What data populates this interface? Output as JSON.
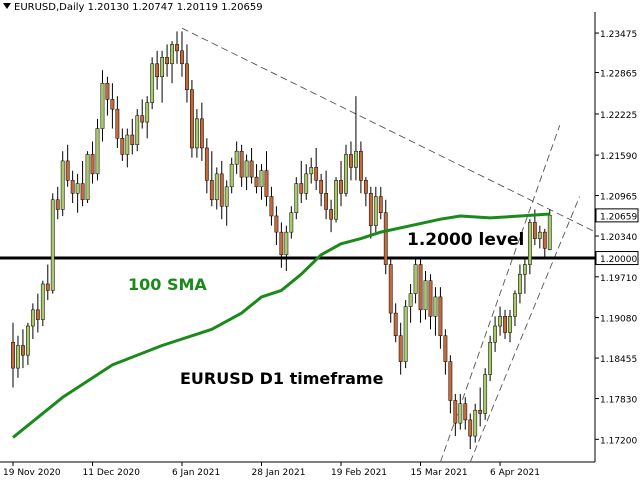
{
  "header": {
    "symbol": "EURUSD,Daily",
    "ohlc": "1.20130 1.20747 1.20119 1.20659"
  },
  "annotations": {
    "level_label": "1.2000 level",
    "sma_label": "100 SMA",
    "timeframe_label": "EURUSD D1 timeframe"
  },
  "colors": {
    "bull": "#a9c96a",
    "bear": "#c46a3a",
    "wick": "#000000",
    "sma": "#1a8a1a",
    "level": "#000000",
    "trend": "#555555",
    "axis_text": "#000000"
  },
  "chart_data": {
    "type": "candlestick",
    "title": "EURUSD,Daily",
    "ylim": [
      1.1685,
      1.238
    ],
    "grid": false,
    "x_ticks": [
      {
        "label": "19 Nov 2020",
        "index": 0
      },
      {
        "label": "11 Dec 2020",
        "index": 16
      },
      {
        "label": "6 Jan 2021",
        "index": 34
      },
      {
        "label": "28 Jan 2021",
        "index": 50
      },
      {
        "label": "19 Feb 2021",
        "index": 66
      },
      {
        "label": "15 Mar 2021",
        "index": 82
      },
      {
        "label": "6 Apr 2021",
        "index": 98
      }
    ],
    "y_ticks": [
      1.23475,
      1.22865,
      1.22225,
      1.2159,
      1.20965,
      1.2034,
      1.1971,
      1.1908,
      1.18455,
      1.1783,
      1.172
    ],
    "current_price_label": "1.20659",
    "level_price_label": "1.20000",
    "level_value": 1.2,
    "candles": [
      [
        1.187,
        1.19,
        1.18,
        1.183
      ],
      [
        1.183,
        1.188,
        1.1815,
        1.1865
      ],
      [
        1.1865,
        1.189,
        1.183,
        1.185
      ],
      [
        1.185,
        1.19,
        1.1835,
        1.1895
      ],
      [
        1.1895,
        1.193,
        1.1875,
        1.192
      ],
      [
        1.192,
        1.1945,
        1.1885,
        1.1905
      ],
      [
        1.1905,
        1.1965,
        1.1895,
        1.196
      ],
      [
        1.196,
        1.199,
        1.1935,
        1.195
      ],
      [
        1.195,
        1.21,
        1.1945,
        1.209
      ],
      [
        1.209,
        1.211,
        1.206,
        1.2075
      ],
      [
        1.2075,
        1.2165,
        1.2065,
        1.215
      ],
      [
        1.215,
        1.2175,
        1.211,
        1.212
      ],
      [
        1.212,
        1.2135,
        1.2085,
        1.21
      ],
      [
        1.21,
        1.213,
        1.207,
        1.2115
      ],
      [
        1.2115,
        1.215,
        1.208,
        1.209
      ],
      [
        1.209,
        1.2165,
        1.2085,
        1.216
      ],
      [
        1.216,
        1.218,
        1.2115,
        1.213
      ],
      [
        1.213,
        1.2215,
        1.212,
        1.22
      ],
      [
        1.22,
        1.229,
        1.218,
        1.227
      ],
      [
        1.227,
        1.228,
        1.222,
        1.2245
      ],
      [
        1.2245,
        1.227,
        1.22,
        1.223
      ],
      [
        1.223,
        1.225,
        1.217,
        1.2185
      ],
      [
        1.2185,
        1.22,
        1.215,
        1.216
      ],
      [
        1.216,
        1.22,
        1.214,
        1.219
      ],
      [
        1.219,
        1.2215,
        1.216,
        1.2175
      ],
      [
        1.2175,
        1.223,
        1.2165,
        1.222
      ],
      [
        1.222,
        1.2245,
        1.22,
        1.221
      ],
      [
        1.221,
        1.225,
        1.2185,
        1.224
      ],
      [
        1.224,
        1.231,
        1.223,
        1.23
      ],
      [
        1.23,
        1.232,
        1.226,
        1.228
      ],
      [
        1.228,
        1.232,
        1.224,
        1.231
      ],
      [
        1.231,
        1.233,
        1.228,
        1.23
      ],
      [
        1.23,
        1.2335,
        1.227,
        1.233
      ],
      [
        1.233,
        1.235,
        1.23,
        1.232
      ],
      [
        1.232,
        1.235,
        1.228,
        1.23
      ],
      [
        1.23,
        1.233,
        1.224,
        1.226
      ],
      [
        1.226,
        1.2275,
        1.2155,
        1.217
      ],
      [
        1.217,
        1.223,
        1.2155,
        1.2215
      ],
      [
        1.2215,
        1.224,
        1.215,
        1.217
      ],
      [
        1.217,
        1.2185,
        1.21,
        1.212
      ],
      [
        1.212,
        1.2165,
        1.208,
        1.209
      ],
      [
        1.209,
        1.214,
        1.2075,
        1.213
      ],
      [
        1.213,
        1.215,
        1.206,
        1.208
      ],
      [
        1.208,
        1.212,
        1.205,
        1.211
      ],
      [
        1.211,
        1.2155,
        1.21,
        1.2145
      ],
      [
        1.2145,
        1.218,
        1.213,
        1.2165
      ],
      [
        1.2165,
        1.2175,
        1.211,
        1.2125
      ],
      [
        1.2125,
        1.216,
        1.2105,
        1.215
      ],
      [
        1.215,
        1.217,
        1.2115,
        1.2125
      ],
      [
        1.2125,
        1.2145,
        1.21,
        1.211
      ],
      [
        1.211,
        1.2145,
        1.209,
        1.2135
      ],
      [
        1.2135,
        1.2165,
        1.208,
        1.2095
      ],
      [
        1.2095,
        1.211,
        1.205,
        1.2065
      ],
      [
        1.2065,
        1.208,
        1.202,
        1.204
      ],
      [
        1.204,
        1.2055,
        1.1985,
        1.2005
      ],
      [
        1.2005,
        1.205,
        1.198,
        1.204
      ],
      [
        1.204,
        1.208,
        1.203,
        1.207
      ],
      [
        1.207,
        1.2125,
        1.206,
        1.2115
      ],
      [
        1.2115,
        1.215,
        1.2085,
        1.21
      ],
      [
        1.21,
        1.2145,
        1.209,
        1.213
      ],
      [
        1.213,
        1.2155,
        1.2115,
        1.214
      ],
      [
        1.214,
        1.217,
        1.2105,
        1.212
      ],
      [
        1.212,
        1.213,
        1.208,
        1.21
      ],
      [
        1.21,
        1.2135,
        1.206,
        1.2075
      ],
      [
        1.2075,
        1.209,
        1.204,
        1.206
      ],
      [
        1.206,
        1.2125,
        1.2055,
        1.212
      ],
      [
        1.212,
        1.215,
        1.208,
        1.21
      ],
      [
        1.21,
        1.2175,
        1.2095,
        1.216
      ],
      [
        1.216,
        1.218,
        1.212,
        1.214
      ],
      [
        1.214,
        1.225,
        1.212,
        1.2165
      ],
      [
        1.2165,
        1.218,
        1.21,
        1.212
      ],
      [
        1.212,
        1.2125,
        1.208,
        1.21
      ],
      [
        1.21,
        1.211,
        1.203,
        1.205
      ],
      [
        1.205,
        1.211,
        1.204,
        1.2095
      ],
      [
        1.2095,
        1.211,
        1.206,
        1.207
      ],
      [
        1.207,
        1.209,
        1.1975,
        1.199
      ],
      [
        1.199,
        1.2,
        1.19,
        1.1915
      ],
      [
        1.1915,
        1.193,
        1.187,
        1.188
      ],
      [
        1.188,
        1.19,
        1.182,
        1.184
      ],
      [
        1.184,
        1.1935,
        1.183,
        1.1925
      ],
      [
        1.1925,
        1.196,
        1.19,
        1.1945
      ],
      [
        1.1945,
        1.2,
        1.193,
        1.199
      ],
      [
        1.199,
        1.2,
        1.19,
        1.192
      ],
      [
        1.192,
        1.198,
        1.1905,
        1.1965
      ],
      [
        1.1965,
        1.1975,
        1.189,
        1.191
      ],
      [
        1.191,
        1.1955,
        1.188,
        1.194
      ],
      [
        1.194,
        1.1955,
        1.186,
        1.188
      ],
      [
        1.188,
        1.189,
        1.182,
        1.184
      ],
      [
        1.184,
        1.185,
        1.176,
        1.178
      ],
      [
        1.178,
        1.179,
        1.1725,
        1.1745
      ],
      [
        1.1745,
        1.179,
        1.1735,
        1.1775
      ],
      [
        1.1775,
        1.1785,
        1.1735,
        1.175
      ],
      [
        1.175,
        1.176,
        1.1705,
        1.1725
      ],
      [
        1.1725,
        1.1775,
        1.1715,
        1.1765
      ],
      [
        1.1765,
        1.18,
        1.174,
        1.176
      ],
      [
        1.176,
        1.183,
        1.175,
        1.182
      ],
      [
        1.182,
        1.188,
        1.181,
        1.187
      ],
      [
        1.187,
        1.191,
        1.1855,
        1.1895
      ],
      [
        1.1895,
        1.1925,
        1.188,
        1.191
      ],
      [
        1.191,
        1.192,
        1.1875,
        1.1885
      ],
      [
        1.1885,
        1.192,
        1.187,
        1.191
      ],
      [
        1.191,
        1.195,
        1.1895,
        1.1945
      ],
      [
        1.1945,
        1.199,
        1.193,
        1.1975
      ],
      [
        1.1975,
        1.2,
        1.1945,
        1.199
      ],
      [
        1.199,
        1.206,
        1.1975,
        1.2055
      ],
      [
        1.2055,
        1.2075,
        1.202,
        1.203
      ],
      [
        1.203,
        1.205,
        1.2015,
        1.204
      ],
      [
        1.204,
        1.2045,
        1.2,
        1.2015
      ],
      [
        1.2013,
        1.2075,
        1.2012,
        1.2066
      ]
    ],
    "sma_100": [
      [
        0,
        1.1723
      ],
      [
        10,
        1.1785
      ],
      [
        20,
        1.1835
      ],
      [
        30,
        1.1865
      ],
      [
        40,
        1.189
      ],
      [
        46,
        1.1915
      ],
      [
        50,
        1.194
      ],
      [
        54,
        1.195
      ],
      [
        58,
        1.1975
      ],
      [
        62,
        1.2005
      ],
      [
        66,
        1.2022
      ],
      [
        70,
        1.203
      ],
      [
        74,
        1.204
      ],
      [
        80,
        1.205
      ],
      [
        86,
        1.206
      ],
      [
        90,
        1.2065
      ],
      [
        96,
        1.2062
      ],
      [
        102,
        1.2065
      ],
      [
        108,
        1.2068
      ]
    ],
    "trendlines": [
      {
        "from": [
          34,
          1.2355
        ],
        "to": [
          108,
          1.2075
        ],
        "extend": true
      },
      {
        "from": [
          86,
          1.1685
        ],
        "to": [
          110,
          1.2205
        ],
        "extend": false
      },
      {
        "from": [
          92,
          1.1685
        ],
        "to": [
          114,
          1.2095
        ],
        "extend": false
      }
    ]
  }
}
